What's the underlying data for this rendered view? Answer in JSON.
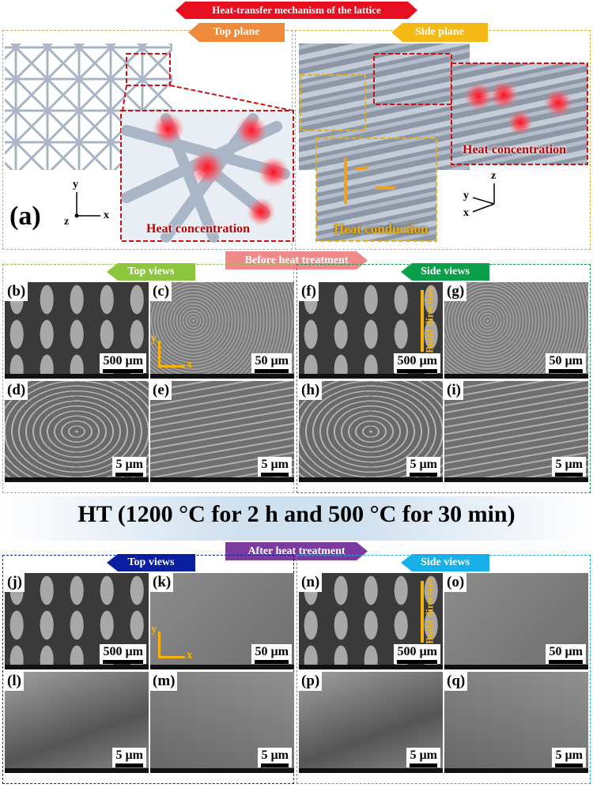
{
  "section_a": {
    "banner": "Heat-transfer mechanism of the lattice",
    "label": "(a)",
    "top_plane": {
      "title": "Top plane",
      "annotation": "Heat concentration",
      "axes": [
        "y",
        "z",
        "x"
      ]
    },
    "side_plane": {
      "title": "Side plane",
      "annotations": [
        "Heat concentration",
        "Heat conduction"
      ],
      "axes": [
        "z",
        "y",
        "x"
      ]
    }
  },
  "before": {
    "banner": "Before heat treatment",
    "groups": [
      {
        "title": "Top views",
        "panels": [
          {
            "label": "(b)",
            "scale": "500 µm"
          },
          {
            "label": "(c)",
            "scale": "50 µm",
            "axes": [
              "y",
              "x"
            ]
          },
          {
            "label": "(d)",
            "scale": "5 µm"
          },
          {
            "label": "(e)",
            "scale": "5 µm"
          }
        ]
      },
      {
        "title": "Side views",
        "panels": [
          {
            "label": "(f)",
            "scale": "500 µm",
            "note": "Build direction"
          },
          {
            "label": "(g)",
            "scale": "50 µm"
          },
          {
            "label": "(h)",
            "scale": "5 µm"
          },
          {
            "label": "(i)",
            "scale": "5 µm"
          }
        ]
      }
    ]
  },
  "treatment": "HT (1200 °C for 2 h and 500 °C for 30 min)",
  "after": {
    "banner": "After heat treatment",
    "groups": [
      {
        "title": "Top views",
        "panels": [
          {
            "label": "(j)",
            "scale": "500 µm"
          },
          {
            "label": "(k)",
            "scale": "50 µm",
            "axes": [
              "y",
              "x"
            ]
          },
          {
            "label": "(l)",
            "scale": "5 µm"
          },
          {
            "label": "(m)",
            "scale": "5 µm"
          }
        ]
      },
      {
        "title": "Side views",
        "panels": [
          {
            "label": "(n)",
            "scale": "500 µm",
            "note": "Build direction"
          },
          {
            "label": "(o)",
            "scale": "50 µm"
          },
          {
            "label": "(p)",
            "scale": "5 µm"
          },
          {
            "label": "(q)",
            "scale": "5 µm"
          }
        ]
      }
    ]
  }
}
